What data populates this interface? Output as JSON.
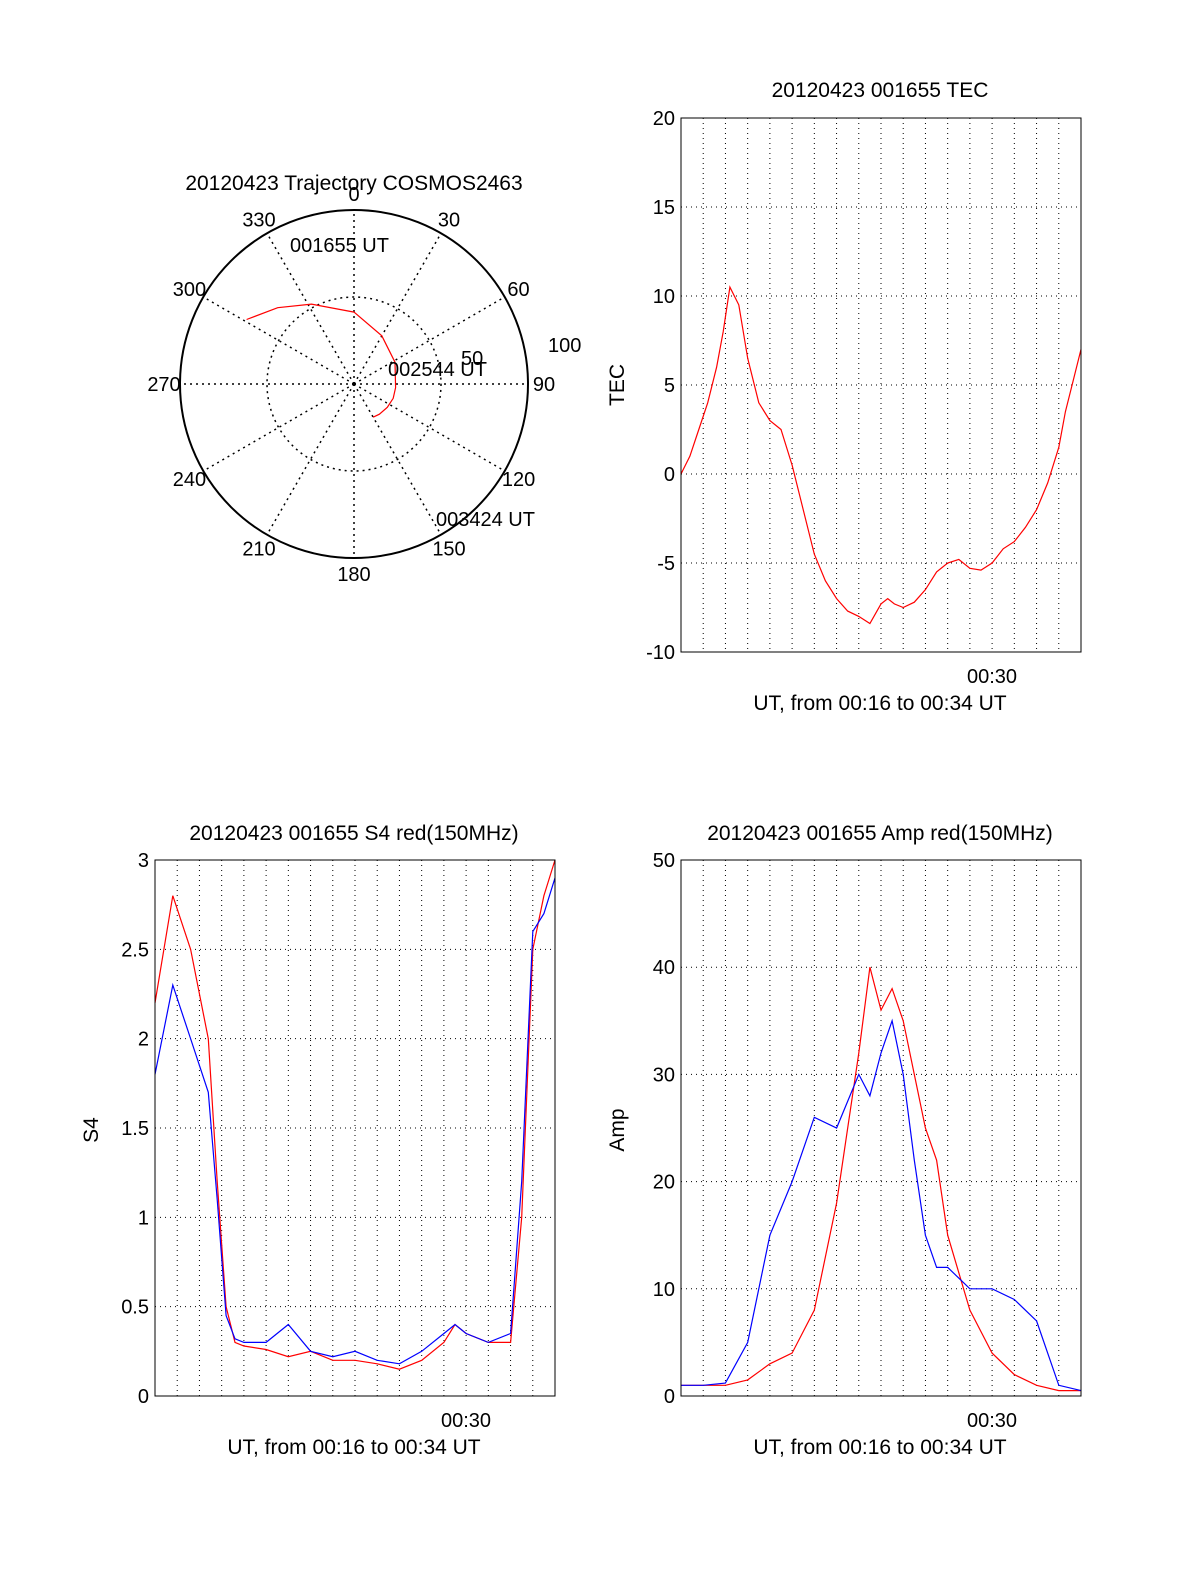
{
  "colors": {
    "red": "#ff0000",
    "blue": "#0000ff",
    "axis": "#000000",
    "grid": "#000000"
  },
  "chart_data": [
    {
      "type": "polar",
      "title": "20120423 Trajectory COSMOS2463",
      "azimuth_labels": [
        "0",
        "30",
        "60",
        "90",
        "120",
        "150",
        "180",
        "210",
        "240",
        "270",
        "300",
        "330"
      ],
      "radial_labels": [
        "50",
        "100"
      ],
      "grid": true,
      "trajectory": {
        "points": [
          [
            -59,
            108
          ],
          [
            -45,
            93
          ],
          [
            -28,
            78
          ],
          [
            0,
            62
          ],
          [
            30,
            48
          ],
          [
            62,
            40
          ],
          [
            95,
            36
          ],
          [
            110,
            36
          ],
          [
            125,
            35
          ],
          [
            140,
            34
          ],
          [
            150,
            33
          ]
        ],
        "labels": [
          {
            "text": "001655 UT",
            "position": "start"
          },
          {
            "text": "002544 UT",
            "position": "middle"
          },
          {
            "text": "003424 UT",
            "position": "end"
          }
        ]
      }
    },
    {
      "type": "line",
      "title": "20120423 001655 TEC",
      "ylabel": "TEC",
      "xlabel": "UT, from 00:16 to 00:34 UT",
      "xtick_labels": [
        "00:30"
      ],
      "ylim": [
        -10,
        20
      ],
      "yticks": [
        "20",
        "15",
        "10",
        "5",
        "0",
        "-5",
        "-10"
      ],
      "grid": true,
      "series": [
        {
          "color": "red",
          "x": [
            0.0,
            0.4,
            0.8,
            1.2,
            1.6,
            1.9,
            2.2,
            2.6,
            3.0,
            3.5,
            4.0,
            4.5,
            5.0,
            5.5,
            6.0,
            6.5,
            7.0,
            7.5,
            8.0,
            8.5,
            9.0,
            9.3,
            9.6,
            10.0,
            10.5,
            11.0,
            11.5,
            12.0,
            12.5,
            13.0,
            13.5,
            14.0,
            14.5,
            15.0,
            15.5,
            16.0,
            16.5,
            17.0,
            17.3,
            17.6,
            18.0
          ],
          "y": [
            0.0,
            1.0,
            2.5,
            4.0,
            6.0,
            8.0,
            10.5,
            9.5,
            6.5,
            4.0,
            3.0,
            2.5,
            0.5,
            -2.0,
            -4.5,
            -6.0,
            -7.0,
            -7.7,
            -8.0,
            -8.4,
            -7.3,
            -7.0,
            -7.3,
            -7.5,
            -7.2,
            -6.5,
            -5.5,
            -5.0,
            -4.8,
            -5.3,
            -5.4,
            -5.0,
            -4.2,
            -3.8,
            -3.0,
            -2.0,
            -0.5,
            1.5,
            3.5,
            5.0,
            7.0
          ]
        }
      ]
    },
    {
      "type": "line",
      "title": "20120423 001655 S4 red(150MHz)",
      "ylabel": "S4",
      "xlabel": "UT, from 00:16 to 00:34 UT",
      "xtick_labels": [
        "00:30"
      ],
      "ylim": [
        0,
        3
      ],
      "yticks": [
        "3",
        "2.5",
        "2",
        "1.5",
        "1",
        "0.5",
        "0"
      ],
      "grid": true,
      "series": [
        {
          "color": "red",
          "x": [
            0.0,
            0.8,
            1.6,
            2.4,
            2.8,
            3.2,
            3.6,
            4.0,
            5.0,
            6.0,
            7.0,
            8.0,
            9.0,
            10.0,
            11.0,
            12.0,
            13.0,
            13.5,
            14.0,
            15.0,
            16.0,
            16.5,
            17.0,
            17.5,
            18.0
          ],
          "y": [
            2.2,
            2.8,
            2.5,
            2.0,
            1.2,
            0.5,
            0.3,
            0.28,
            0.26,
            0.22,
            0.25,
            0.2,
            0.2,
            0.18,
            0.15,
            0.2,
            0.3,
            0.4,
            0.35,
            0.3,
            0.3,
            1.0,
            2.5,
            2.8,
            3.0
          ]
        },
        {
          "color": "blue",
          "x": [
            0.0,
            0.8,
            1.6,
            2.4,
            2.8,
            3.2,
            3.6,
            4.0,
            5.0,
            6.0,
            7.0,
            8.0,
            9.0,
            10.0,
            11.0,
            12.0,
            13.0,
            13.5,
            14.0,
            15.0,
            16.0,
            16.5,
            17.0,
            17.5,
            18.0
          ],
          "y": [
            1.8,
            2.3,
            2.0,
            1.7,
            1.1,
            0.45,
            0.32,
            0.3,
            0.3,
            0.4,
            0.25,
            0.22,
            0.25,
            0.2,
            0.18,
            0.25,
            0.35,
            0.4,
            0.35,
            0.3,
            0.35,
            1.2,
            2.6,
            2.7,
            2.9
          ]
        }
      ]
    },
    {
      "type": "line",
      "title": "20120423 001655 Amp red(150MHz)",
      "ylabel": "Amp",
      "xlabel": "UT, from 00:16 to 00:34 UT",
      "xtick_labels": [
        "00:30"
      ],
      "ylim": [
        0,
        50
      ],
      "yticks": [
        "50",
        "40",
        "30",
        "20",
        "10",
        "0"
      ],
      "grid": true,
      "series": [
        {
          "color": "red",
          "x": [
            0.0,
            1.0,
            2.0,
            3.0,
            4.0,
            5.0,
            6.0,
            7.0,
            8.0,
            8.5,
            9.0,
            9.5,
            10.0,
            10.5,
            11.0,
            11.5,
            12.0,
            13.0,
            14.0,
            15.0,
            16.0,
            17.0,
            18.0
          ],
          "y": [
            1.0,
            1.0,
            1.0,
            1.5,
            3.0,
            4.0,
            8.0,
            18.0,
            32.0,
            40.0,
            36.0,
            38.0,
            35.0,
            30.0,
            25.0,
            22.0,
            15.0,
            8.0,
            4.0,
            2.0,
            1.0,
            0.5,
            0.5
          ]
        },
        {
          "color": "blue",
          "x": [
            0.0,
            1.0,
            2.0,
            3.0,
            4.0,
            5.0,
            6.0,
            7.0,
            8.0,
            8.5,
            9.0,
            9.5,
            10.0,
            10.5,
            11.0,
            11.5,
            12.0,
            13.0,
            14.0,
            15.0,
            16.0,
            17.0,
            18.0
          ],
          "y": [
            1.0,
            1.0,
            1.2,
            5.0,
            15.0,
            20.0,
            26.0,
            25.0,
            30.0,
            28.0,
            32.0,
            35.0,
            30.0,
            22.0,
            15.0,
            12.0,
            12.0,
            10.0,
            10.0,
            9.0,
            7.0,
            1.0,
            0.5
          ]
        }
      ]
    }
  ]
}
